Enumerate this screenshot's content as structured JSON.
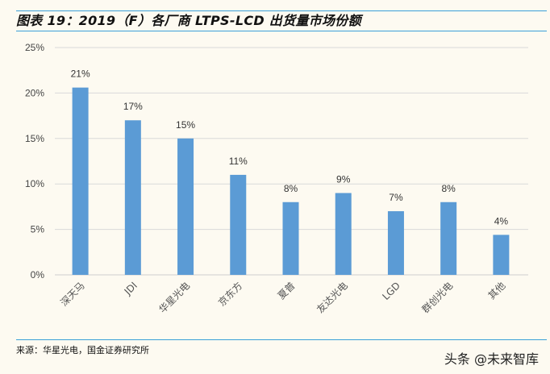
{
  "title": "图表 19：2019（F）各厂商 LTPS-LCD 出货量市场份额",
  "source": "来源：华星光电，国金证券研究所",
  "watermark": "头条 @未来智库",
  "colors": {
    "bar": "#5b9bd5",
    "rule": "#3aa0d8",
    "grid": "#d9d9d9"
  },
  "chart_data": {
    "type": "bar",
    "categories": [
      "深天马",
      "JDI",
      "华星光电",
      "京东方",
      "夏普",
      "友达光电",
      "LGD",
      "群创光电",
      "其他"
    ],
    "values": [
      20.6,
      17,
      15,
      11,
      8,
      9,
      7,
      8,
      4.4
    ],
    "data_labels": [
      "21%",
      "17%",
      "15%",
      "11%",
      "8%",
      "9%",
      "7%",
      "8%",
      "4%"
    ],
    "ylim": [
      0,
      25
    ],
    "yticks": [
      "0%",
      "5%",
      "10%",
      "15%",
      "20%",
      "25%"
    ],
    "grid": true,
    "legend": "none"
  }
}
